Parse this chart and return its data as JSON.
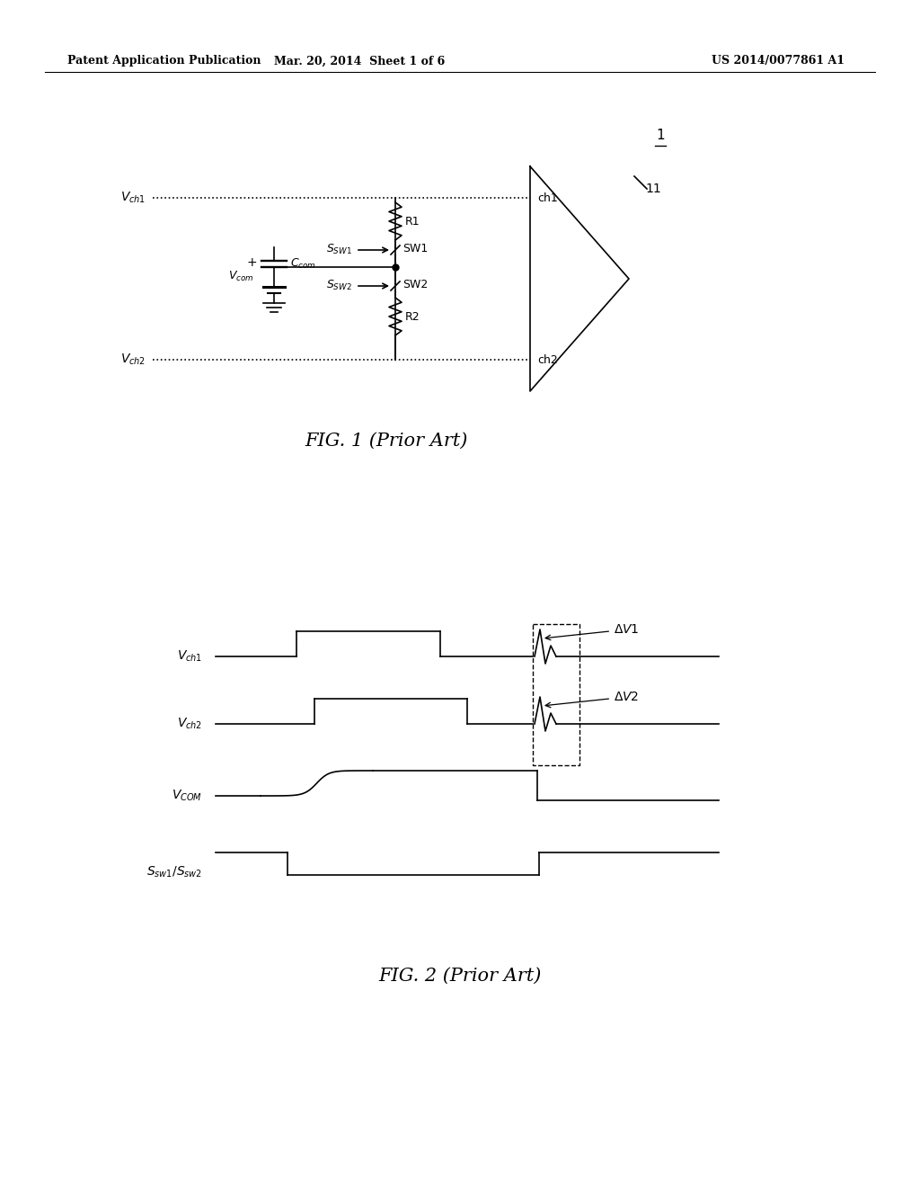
{
  "bg_color": "#ffffff",
  "header_left": "Patent Application Publication",
  "header_mid": "Mar. 20, 2014  Sheet 1 of 6",
  "header_right": "US 2014/0077861 A1",
  "fig1_caption": "FIG. 1 (Prior Art)",
  "fig2_caption": "FIG. 2 (Prior Art)",
  "fig1_label": "1",
  "fig1_sublabel": "11",
  "label_color": "#000000",
  "line_color": "#000000",
  "line_width": 1.2
}
